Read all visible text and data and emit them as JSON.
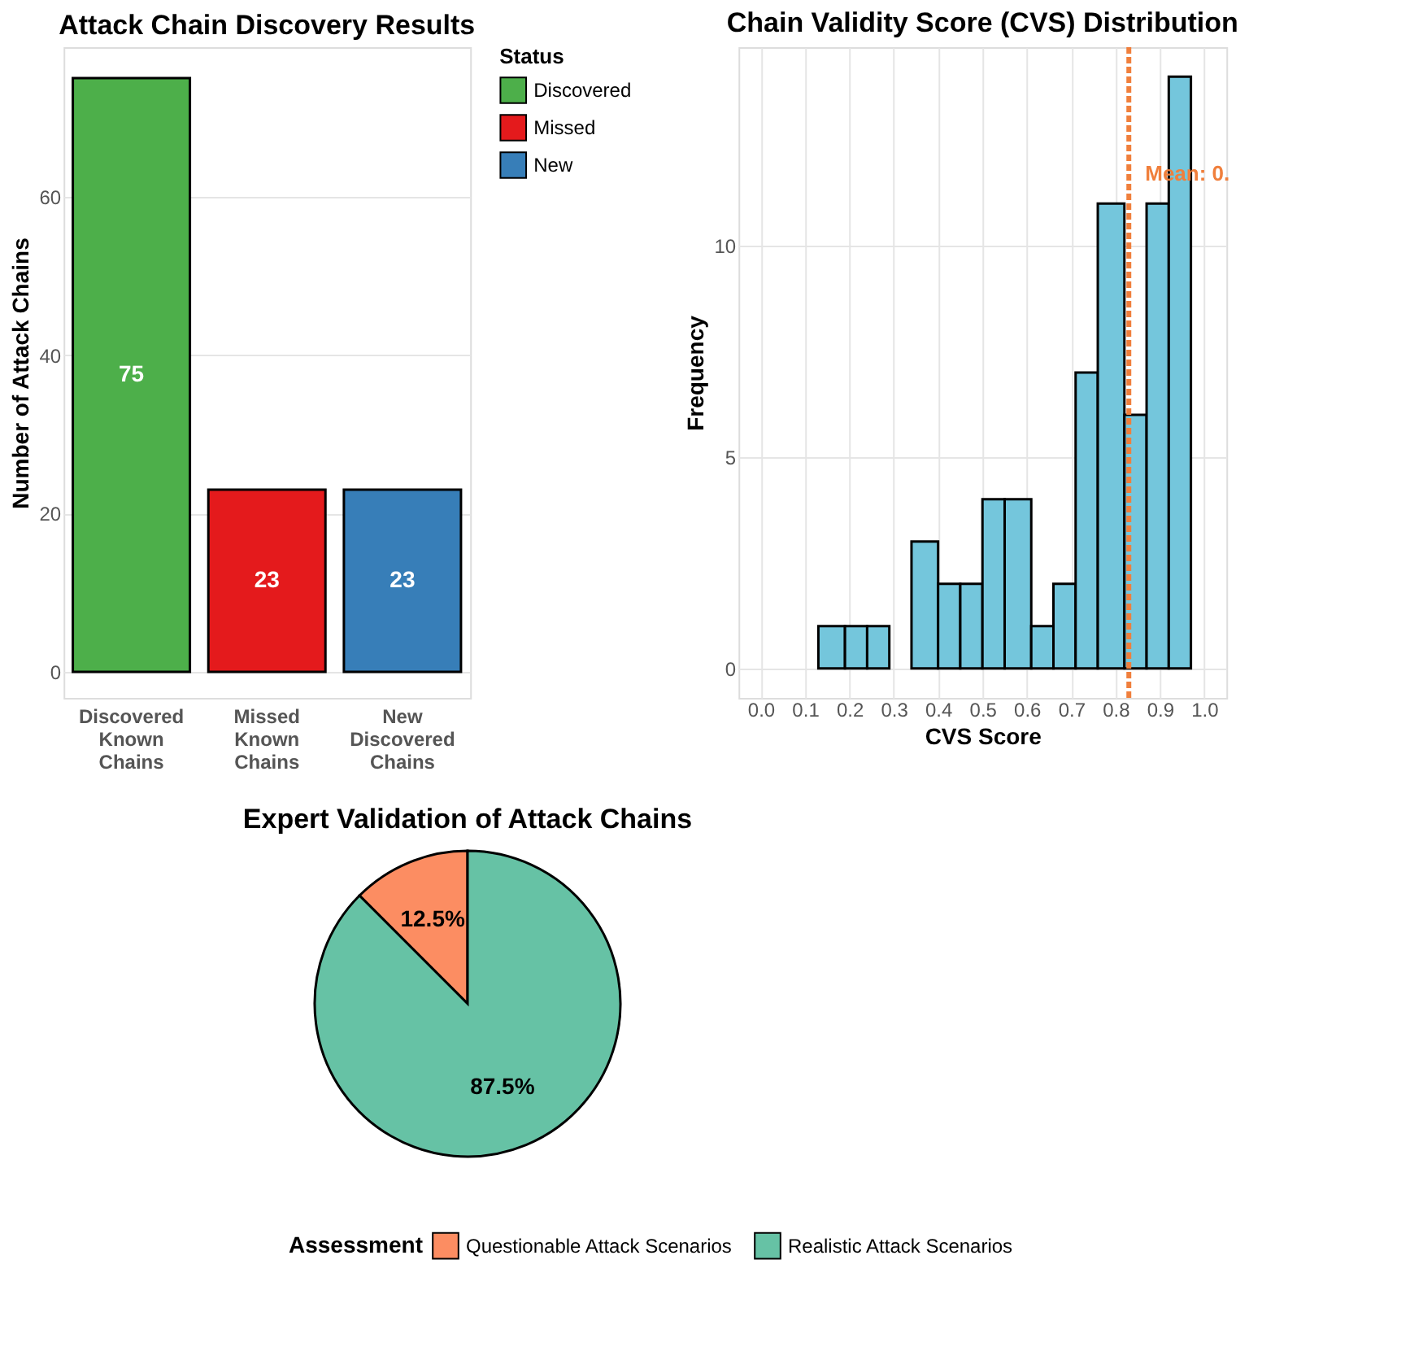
{
  "chart_data": [
    {
      "type": "bar",
      "title": "Attack Chain Discovery Results",
      "ylabel": "Number of Attack Chains",
      "legend_title": "Status",
      "categories": [
        "Discovered Known Chains",
        "Missed Known Chains",
        "New Discovered Chains"
      ],
      "series": [
        {
          "name": "Discovered",
          "color": "#4daf4a",
          "values": [
            75,
            null,
            null
          ]
        },
        {
          "name": "Missed",
          "color": "#e41a1c",
          "values": [
            null,
            23,
            null
          ]
        },
        {
          "name": "New",
          "color": "#377eb8",
          "values": [
            null,
            null,
            23
          ]
        }
      ],
      "ylim": [
        -3.3,
        78.9
      ],
      "yticks": [
        0,
        20,
        40,
        60
      ],
      "grid": "y",
      "legend": "right",
      "data_labels": true
    },
    {
      "type": "histogram",
      "title": "Chain Validity Score (CVS) Distribution",
      "xlabel": "CVS Score",
      "ylabel": "Frequency",
      "color": "#74c6dc",
      "bins": [
        0.13,
        0.19,
        0.24,
        0.29,
        0.34,
        0.4,
        0.45,
        0.5,
        0.55,
        0.61,
        0.66,
        0.71,
        0.76,
        0.82,
        0.87,
        0.92,
        0.97
      ],
      "values": [
        1,
        1,
        1,
        0,
        3,
        2,
        2,
        4,
        4,
        1,
        2,
        7,
        11,
        6,
        11,
        14
      ],
      "xlim": [
        -0.05,
        1.05
      ],
      "xticks": [
        {
          "value": 0,
          "label": "0.0"
        },
        0.1,
        0.2,
        0.3,
        0.4,
        0.5,
        0.6,
        0.7,
        0.8,
        0.9,
        {
          "value": 1,
          "label": "1.0"
        }
      ],
      "ylim": [
        -0.7,
        14.7
      ],
      "yticks": [
        0,
        5,
        10
      ],
      "grid": true,
      "ref_lines": [
        {
          "axis": "x",
          "value": 0.83,
          "color": "#f07f3c",
          "line_style": "dashed"
        }
      ],
      "annotations": [
        "Mean: 0."
      ]
    },
    {
      "type": "pie",
      "title": "Expert Validation of Attack Chains",
      "legend_title": "Assessment",
      "categories": [
        "Questionable Attack Scenarios",
        "Realistic Attack Scenarios"
      ],
      "values": [
        12.5,
        87.5
      ],
      "colors": [
        "#fc8d62",
        "#66c2a5"
      ],
      "value_labels": [
        "12.5%",
        "87.5%"
      ],
      "legend": "bottom"
    }
  ]
}
